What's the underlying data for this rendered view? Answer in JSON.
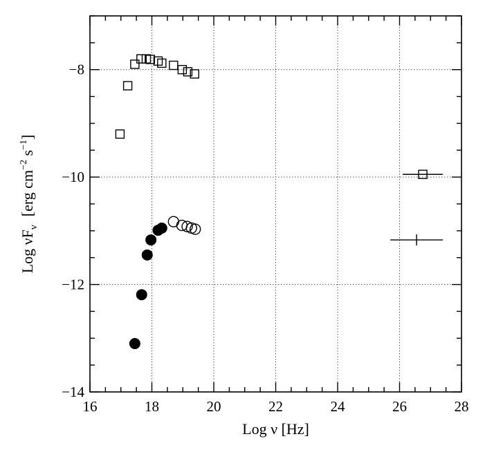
{
  "chart_data": {
    "type": "scatter",
    "title": "",
    "xlabel": "Log ν  [Hz]",
    "ylabel": "Log νF",
    "ylabel_subscript": "ν",
    "ylabel_units": "[erg cm",
    "ylabel_units_exp1": "−2",
    "ylabel_units_mid": " s",
    "ylabel_units_exp2": "−1",
    "ylabel_units_end": "]",
    "xlim": [
      16,
      28
    ],
    "ylim": [
      -14,
      -7
    ],
    "x_ticks": [
      16,
      18,
      20,
      22,
      24,
      26,
      28
    ],
    "x_tick_labels": [
      "16",
      "18",
      "20",
      "22",
      "24",
      "26",
      "28"
    ],
    "y_ticks": [
      -14,
      -12,
      -10,
      -8
    ],
    "y_tick_labels": [
      "−14",
      "−12",
      "−10",
      "−8"
    ],
    "grid": true,
    "series": [
      {
        "marker": "open-square",
        "points": [
          [
            16.97,
            -9.2
          ],
          [
            17.22,
            -8.3
          ],
          [
            17.45,
            -7.9
          ],
          [
            17.65,
            -7.8
          ],
          [
            17.82,
            -7.8
          ],
          [
            17.95,
            -7.81
          ],
          [
            18.2,
            -7.84
          ],
          [
            18.32,
            -7.88
          ],
          [
            18.7,
            -7.92
          ],
          [
            18.98,
            -8.0
          ],
          [
            19.16,
            -8.04
          ],
          [
            19.38,
            -8.08
          ]
        ]
      },
      {
        "marker": "open-circle",
        "points": [
          [
            18.7,
            -10.83
          ],
          [
            18.97,
            -10.9
          ],
          [
            19.14,
            -10.92
          ],
          [
            19.28,
            -10.95
          ],
          [
            19.4,
            -10.97
          ]
        ]
      },
      {
        "marker": "filled-circle",
        "points": [
          [
            17.45,
            -13.1
          ],
          [
            17.67,
            -12.19
          ],
          [
            17.85,
            -11.45
          ],
          [
            17.97,
            -11.17
          ],
          [
            18.2,
            -10.99
          ],
          [
            18.32,
            -10.95
          ]
        ]
      },
      {
        "marker": "open-square-errorbar",
        "points": [
          [
            26.75,
            -9.95
          ]
        ],
        "xerr": [
          [
            26.1,
            27.4
          ]
        ]
      },
      {
        "marker": "errorbar-only",
        "points": [
          [
            26.55,
            -11.17
          ]
        ],
        "xerr": [
          [
            25.7,
            27.4
          ]
        ]
      }
    ]
  }
}
